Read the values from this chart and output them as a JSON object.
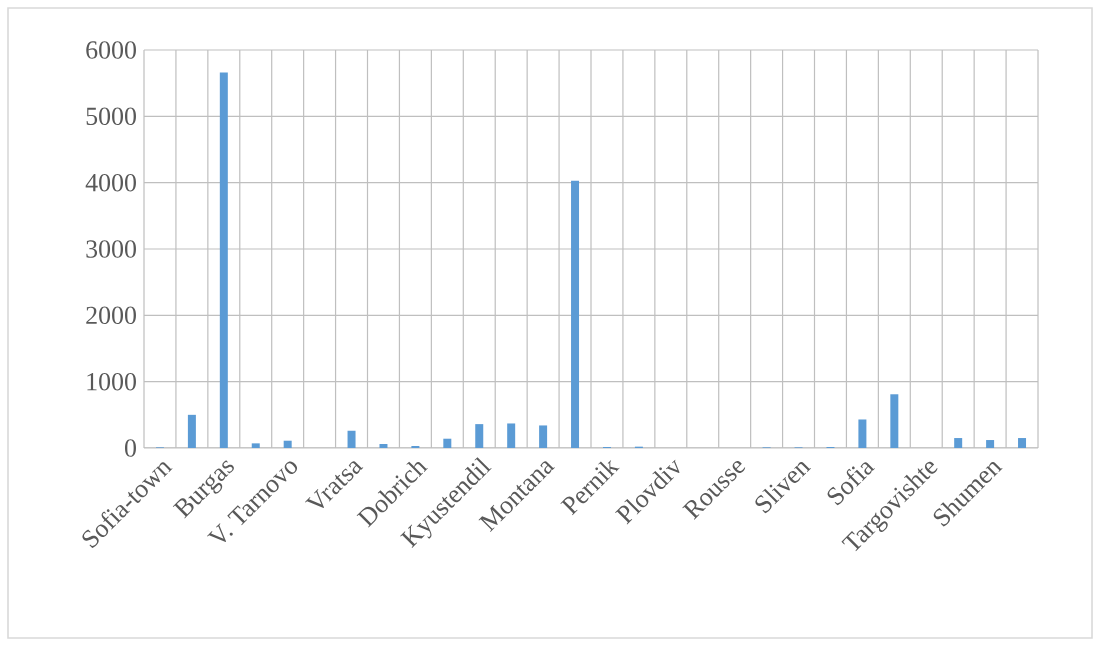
{
  "chart_data": {
    "type": "bar",
    "categories": [
      "Sofia-town",
      null,
      "Burgas",
      null,
      "V. Tarnovo",
      null,
      "Vratsa",
      null,
      "Dobrich",
      null,
      "Kyustendil",
      null,
      "Montana",
      null,
      "Pernik",
      null,
      "Plovdiv",
      null,
      "Rousse",
      null,
      "Sliven",
      null,
      "Sofia",
      null,
      "Targovishte",
      null,
      "Shumen",
      null
    ],
    "values": [
      10,
      500,
      5660,
      70,
      110,
      0,
      260,
      60,
      30,
      140,
      360,
      370,
      340,
      4030,
      15,
      20,
      0,
      0,
      0,
      10,
      10,
      15,
      430,
      810,
      0,
      150,
      120,
      150
    ],
    "color": "#5b9bd5",
    "ylim": [
      0,
      6000
    ],
    "yticks": [
      0,
      1000,
      2000,
      3000,
      4000,
      5000,
      6000
    ],
    "grid": true
  }
}
